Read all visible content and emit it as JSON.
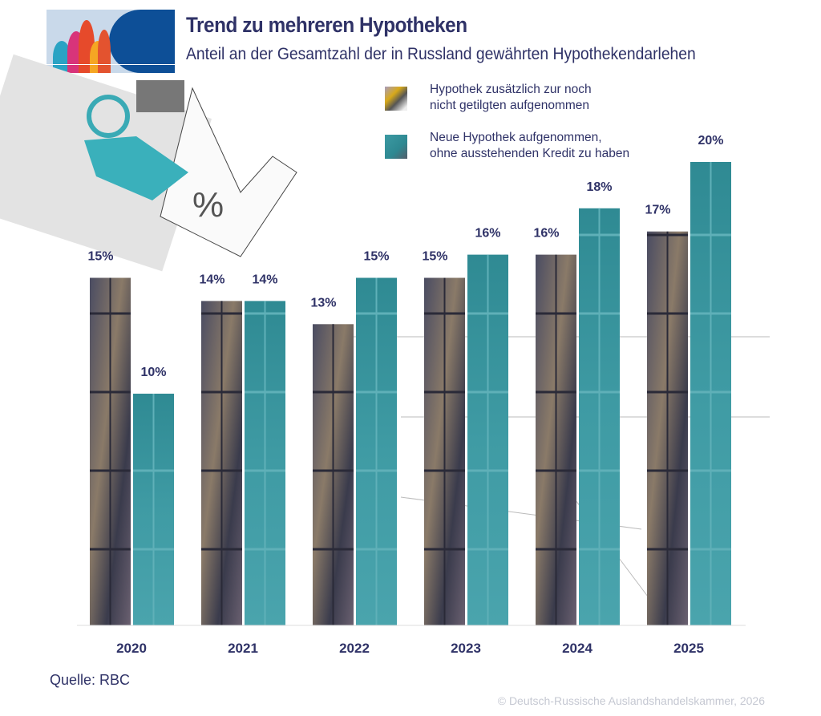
{
  "header": {
    "title": "Trend zu mehreren Hypotheken",
    "subtitle": "Anteil an der Gesamtzahl der in Russland gewährten Hypothekendarlehen"
  },
  "legend": [
    {
      "label_line1": "Hypothek zusätzlich zur noch",
      "label_line2": "nicht getilgten aufgenommen"
    },
    {
      "label_line1": "Neue Hypothek aufgenommen,",
      "label_line2": "ohne ausstehenden Kredit zu haben"
    }
  ],
  "chart_data": {
    "type": "bar",
    "title": "Trend zu mehreren Hypotheken",
    "subtitle": "Anteil an der Gesamtzahl der in Russland gewährten Hypothekendarlehen",
    "categories": [
      "2020",
      "2021",
      "2022",
      "2023",
      "2024",
      "2025"
    ],
    "series": [
      {
        "name": "Hypothek zusätzlich zur noch nicht getilgten aufgenommen",
        "values": [
          15,
          14,
          13,
          15,
          16,
          17
        ],
        "labels": [
          "15%",
          "14%",
          "13%",
          "15%",
          "16%",
          "17%"
        ],
        "color": "#3b3f55"
      },
      {
        "name": "Neue Hypothek aufgenommen, ohne ausstehenden Kredit zu haben",
        "values": [
          10,
          14,
          15,
          16,
          18,
          20
        ],
        "labels": [
          "10%",
          "14%",
          "15%",
          "16%",
          "18%",
          "20%"
        ],
        "color": "#3a96a0"
      }
    ],
    "ylim": [
      0,
      20
    ],
    "grid": false,
    "legend_position": "top-right"
  },
  "footer": {
    "source": "Quelle: RBC",
    "copyright": "© Deutsch-Russische Auslandshandelskammer, 2026"
  },
  "colors": {
    "text": "#2f3267",
    "teal": "#3a96a0",
    "logo_blue": "#0d4f97"
  }
}
